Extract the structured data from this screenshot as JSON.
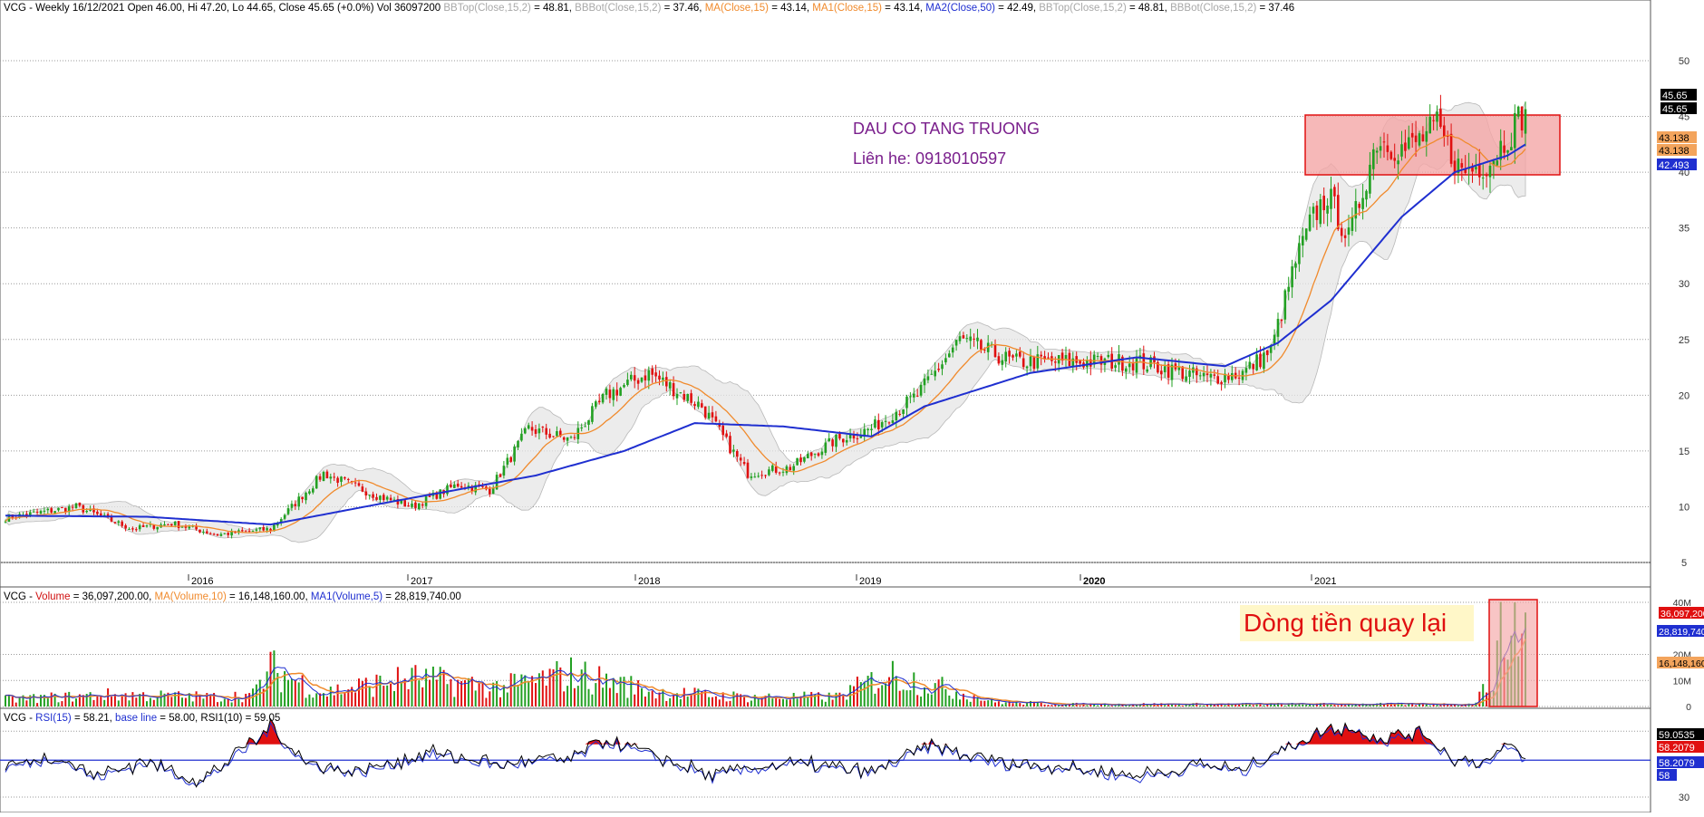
{
  "header": {
    "prefix": "VCG - Weekly 16/12/2021 Open 46.00, Hi 47.20, Lo 44.65, Close 45.65 (+0.0%) Vol 36097200",
    "items": [
      {
        "text": "BBTop(Close,15,2)",
        "value": " = 48.81,",
        "color": "#a8a8a8"
      },
      {
        "text": "BBBot(Close,15,2)",
        "value": " = 37.46,",
        "color": "#a8a8a8"
      },
      {
        "text": "MA(Close,15)",
        "value": " = 43.14,",
        "color": "#f08a2c"
      },
      {
        "text": "MA1(Close,15)",
        "value": " = 43.14,",
        "color": "#f08a2c"
      },
      {
        "text": "MA2(Close,50)",
        "value": " = 42.49,",
        "color": "#1f2fd0"
      },
      {
        "text": "BBTop(Close,15,2)",
        "value": " = 48.81,",
        "color": "#a8a8a8"
      },
      {
        "text": "BBBot(Close,15,2)",
        "value": " = 37.46",
        "color": "#a8a8a8"
      }
    ]
  },
  "volume_header": {
    "prefix": "VCG - ",
    "items": [
      {
        "text": "Volume",
        "value": " = 36,097,200.00,",
        "color": "#d01010"
      },
      {
        "text": "MA(Volume,10)",
        "value": " = 16,148,160.00,",
        "color": "#f08a2c"
      },
      {
        "text": "MA1(Volume,5)",
        "value": " = 28,819,740.00",
        "color": "#1f2fd0"
      }
    ]
  },
  "rsi_header": {
    "prefix": "VCG - ",
    "items": [
      {
        "text": "RSI(15)",
        "value": " = 58.21,",
        "color": "#1f2fd0"
      },
      {
        "text": "base line",
        "value": " = 58.00,",
        "color": "#1f2fd0"
      },
      {
        "text": "RSI1(10)",
        "value": " = 59.05",
        "color": "#000000"
      }
    ]
  },
  "annotations": {
    "brand": "DAU CO TANG TRUONG",
    "contact": "Liên he: 0918010597",
    "money_flow": "Dòng tiền quay lại"
  },
  "colors": {
    "up": "#22a022",
    "down": "#e01010",
    "ma15": "#f08a2c",
    "ma50": "#1f2fd0",
    "band_fill": "#e6e6e6",
    "band_stroke": "#b8b8b8",
    "highlight_fill": "#f4a6a6",
    "highlight_stroke": "#e01010",
    "text_purple": "#7a1f8c",
    "rsi_fill": "#e01010"
  },
  "chart_data": [
    {
      "type": "candlestick",
      "panel": "price",
      "x_labels": [
        "2016",
        "2017",
        "2018",
        "2019",
        "2020",
        "2021"
      ],
      "y_ticks": [
        5,
        10,
        15,
        20,
        25,
        30,
        35,
        40,
        45,
        50
      ],
      "ylim": [
        3.5,
        53.5
      ],
      "last_values": {
        "close": "45.65",
        "close2": "45.65",
        "ma15": "43.138",
        "ma15b": "43.138",
        "ma50": "42.493"
      },
      "key_points": {
        "weeks": [
          0,
          20,
          36,
          47,
          60,
          75,
          90,
          105,
          115,
          128,
          137,
          148,
          160,
          170,
          182,
          197,
          210,
          222,
          235,
          245,
          258,
          270,
          285,
          300,
          320,
          340,
          350,
          358,
          365,
          370,
          374,
          380,
          388,
          396,
          405,
          412,
          420,
          430
        ],
        "close": [
          9,
          10,
          8,
          8.5,
          7.5,
          8,
          13,
          11,
          10,
          12,
          11.5,
          17,
          16,
          20,
          22,
          19,
          13,
          13.5,
          16,
          17,
          20,
          25,
          23,
          23,
          23,
          21.5,
          22,
          24,
          32,
          36,
          38,
          34,
          43,
          42,
          44,
          40,
          41,
          45.65
        ]
      },
      "ma50_points": {
        "weeks": [
          0,
          40,
          75,
          110,
          150,
          175,
          195,
          220,
          245,
          260,
          290,
          320,
          345,
          360,
          375,
          395,
          410,
          425,
          430
        ],
        "values": [
          9.2,
          9.1,
          8.4,
          10.5,
          12.8,
          15.0,
          17.5,
          17.2,
          16.3,
          19.0,
          22.0,
          23.4,
          22.6,
          24.7,
          28.5,
          36.0,
          40.0,
          41.5,
          42.49
        ]
      }
    },
    {
      "type": "bar",
      "panel": "volume",
      "y_ticks": [
        "0",
        "10M",
        "20M",
        "40M"
      ],
      "last_values": {
        "volume": "36,097,200",
        "ma5": "28,819,740",
        "ma10": "16,148,160"
      },
      "key_points": {
        "weeks": [
          0,
          30,
          60,
          70,
          75,
          90,
          115,
          140,
          160,
          185,
          210,
          235,
          250,
          280,
          300,
          340,
          370,
          400,
          415,
          420,
          425,
          430
        ],
        "values_millions": [
          3,
          5,
          4,
          5,
          16,
          6,
          12,
          8,
          14,
          6,
          4,
          4,
          14,
          2,
          1,
          1,
          1,
          1,
          1,
          10,
          40,
          36
        ]
      }
    },
    {
      "type": "line",
      "panel": "rsi",
      "y_ticks": [
        30
      ],
      "baseline": 58,
      "last_values": {
        "rsi_top": "59.0535",
        "rsi_b": "58.2079",
        "rsi_c": "58.2079",
        "base": "58"
      },
      "key_points": {
        "weeks": [
          0,
          15,
          25,
          40,
          55,
          70,
          75,
          85,
          100,
          120,
          140,
          160,
          170,
          200,
          220,
          245,
          262,
          280,
          300,
          320,
          340,
          350,
          358,
          372,
          380,
          390,
          400,
          410,
          420,
          425,
          430
        ],
        "values": [
          52,
          60,
          44,
          56,
          40,
          70,
          82,
          55,
          48,
          62,
          54,
          58,
          72,
          45,
          55,
          48,
          68,
          55,
          52,
          44,
          54,
          48,
          62,
          78,
          82,
          72,
          78,
          58,
          55,
          68,
          59.05
        ]
      }
    }
  ]
}
